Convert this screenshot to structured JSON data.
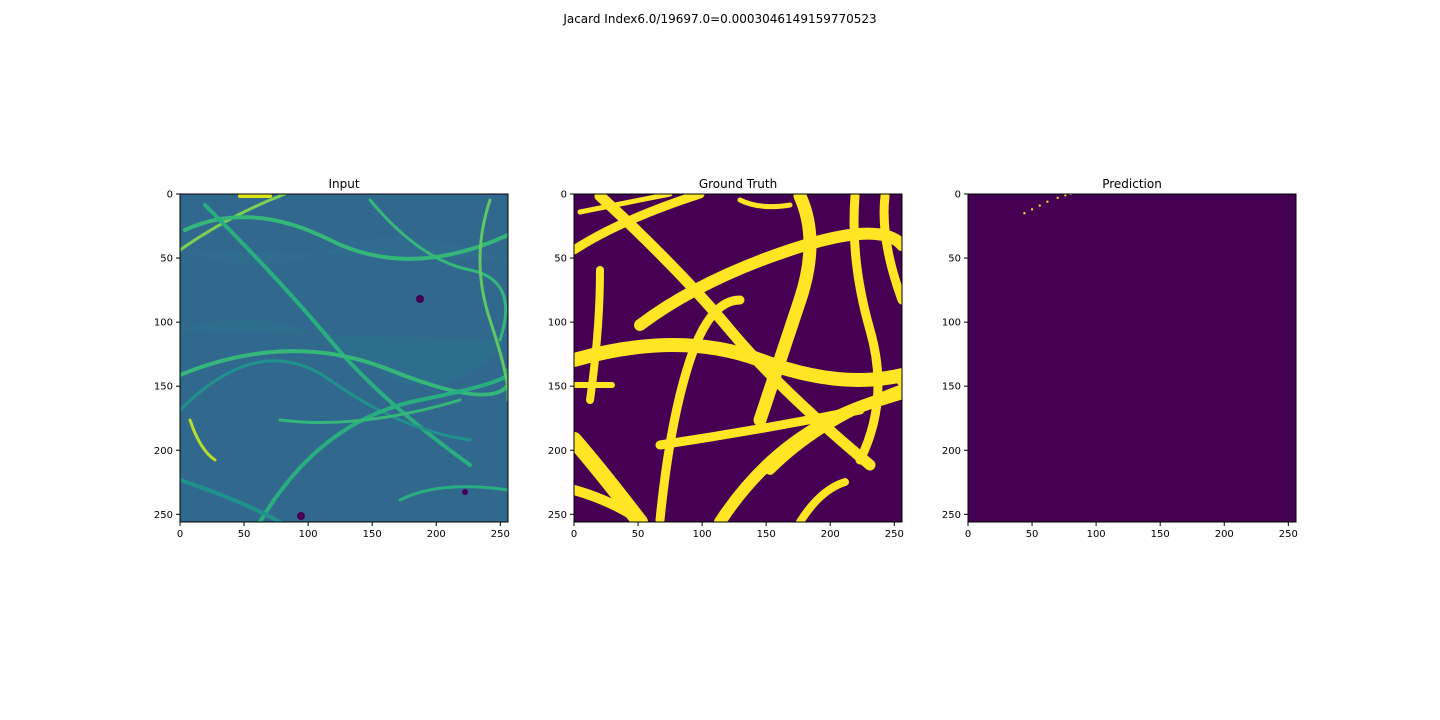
{
  "figure": {
    "suptitle": "Jacard Index6.0/19697.0=0.0003046149159770523"
  },
  "chart_data": [
    {
      "type": "heatmap",
      "title": "Input",
      "xlabel": "",
      "ylabel": "",
      "xlim": [
        0,
        256
      ],
      "ylim": [
        256,
        0
      ],
      "x_ticks": [
        0,
        50,
        100,
        150,
        200,
        250
      ],
      "y_ticks": [
        0,
        50,
        100,
        150,
        200,
        250
      ],
      "colormap": "viridis",
      "background_color": "#31688e",
      "content": "grayscale micrograph of fibers rendered in viridis"
    },
    {
      "type": "heatmap",
      "title": "Ground Truth",
      "xlabel": "",
      "ylabel": "",
      "xlim": [
        0,
        256
      ],
      "ylim": [
        256,
        0
      ],
      "x_ticks": [
        0,
        50,
        100,
        150,
        200,
        250
      ],
      "y_ticks": [
        0,
        50,
        100,
        150,
        200,
        250
      ],
      "colormap": "viridis",
      "colors": {
        "background": "#440154",
        "foreground": "#fde725"
      },
      "content": "binary fiber mask"
    },
    {
      "type": "heatmap",
      "title": "Prediction",
      "xlabel": "",
      "ylabel": "",
      "xlim": [
        0,
        256
      ],
      "ylim": [
        256,
        0
      ],
      "x_ticks": [
        0,
        50,
        100,
        150,
        200,
        250
      ],
      "y_ticks": [
        0,
        50,
        100,
        150,
        200,
        250
      ],
      "colormap": "viridis",
      "colors": {
        "background": "#440154",
        "foreground": "#fde725"
      },
      "predicted_pixels": [
        [
          44,
          15
        ],
        [
          50,
          12
        ],
        [
          56,
          9
        ],
        [
          62,
          6
        ],
        [
          70,
          3
        ],
        [
          76,
          1
        ],
        [
          80,
          0
        ]
      ]
    }
  ]
}
